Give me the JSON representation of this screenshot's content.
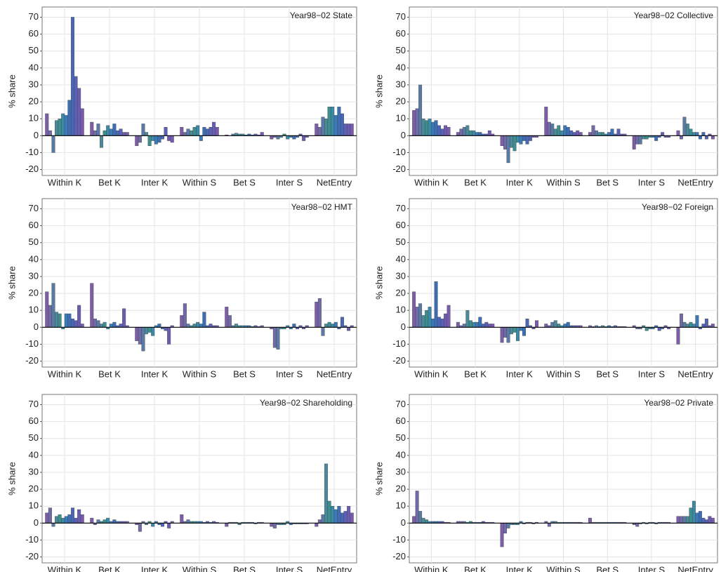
{
  "colors": [
    "#7b5ea7",
    "#6f6aa8",
    "#5a7aa6",
    "#4a8a9a",
    "#3a8f8f",
    "#3a8aa8",
    "#3a7ab8",
    "#3a6fb8",
    "#4a66b8",
    "#5a60b4",
    "#6a5cb2",
    "#7a5ab0"
  ],
  "chart_data": [
    {
      "type": "bar",
      "annotation": "Year98−02 State",
      "ylabel": "% share",
      "categories": [
        "Within K",
        "Bet K",
        "Inter K",
        "Within S",
        "Bet S",
        "Inter S",
        "NetEntry"
      ],
      "values": [
        [
          13,
          3,
          -10,
          9,
          10,
          13,
          12,
          21,
          70,
          35,
          28,
          16
        ],
        [
          8,
          3,
          7,
          -7,
          3,
          6,
          4,
          7,
          3,
          4,
          2,
          2
        ],
        [
          -6,
          -4,
          7,
          2,
          -6,
          -3,
          -5,
          -4,
          -2,
          5,
          -3,
          -4
        ],
        [
          5,
          2,
          4,
          3,
          5,
          6,
          -3,
          5,
          4,
          5,
          8,
          5
        ],
        [
          0.5,
          0,
          1,
          1.5,
          1,
          1,
          0.5,
          1,
          0.5,
          1,
          0.5,
          2
        ],
        [
          -2,
          -1,
          -2,
          -1,
          1,
          -2,
          -1,
          -2,
          -1,
          1,
          -3,
          -1
        ],
        [
          7,
          5,
          11,
          10,
          17,
          17,
          12,
          17,
          13,
          7,
          7,
          7
        ]
      ],
      "ylim": [
        -23.5,
        76
      ],
      "yticks": [
        -20,
        -10,
        0,
        10,
        20,
        30,
        40,
        50,
        60,
        70
      ],
      "grid": true
    },
    {
      "type": "bar",
      "annotation": "Year98−02 Collective",
      "ylabel": "% share",
      "categories": [
        "Within K",
        "Bet K",
        "Inter K",
        "Within S",
        "Bet S",
        "Inter S",
        "NetEntry"
      ],
      "values": [
        [
          15,
          16,
          30,
          10,
          9,
          10,
          8,
          9,
          6,
          4,
          6,
          5
        ],
        [
          2,
          4,
          5,
          6,
          3,
          3,
          2,
          2,
          1,
          1,
          3,
          1
        ],
        [
          -6,
          -8,
          -16,
          -7,
          -9,
          -4,
          -5,
          -3,
          -5,
          -3,
          -1,
          -1
        ],
        [
          17,
          8,
          7,
          4,
          6,
          3,
          6,
          5,
          3,
          2,
          3,
          2
        ],
        [
          2,
          6,
          3,
          2,
          2,
          1,
          2,
          4,
          1,
          4,
          1,
          1
        ],
        [
          -8,
          -5,
          -5,
          -2,
          -2,
          -1,
          -1,
          -3,
          -1,
          2,
          -1,
          -1
        ],
        [
          3,
          -2,
          11,
          7,
          4,
          2,
          2,
          -2,
          2,
          -2,
          1,
          -2
        ]
      ],
      "ylim": [
        -23.5,
        76
      ],
      "yticks": [
        -20,
        -10,
        0,
        10,
        20,
        30,
        40,
        50,
        60,
        70
      ],
      "grid": true
    },
    {
      "type": "bar",
      "annotation": "Year98−02 HMT",
      "ylabel": "% share",
      "categories": [
        "Within K",
        "Bet K",
        "Inter K",
        "Within S",
        "Bet S",
        "Inter S",
        "NetEntry"
      ],
      "values": [
        [
          21,
          13,
          26,
          9,
          8,
          -1,
          8,
          8,
          5,
          4,
          13,
          2
        ],
        [
          26,
          5,
          4,
          2,
          3,
          -1,
          2,
          3,
          1,
          2,
          11,
          1
        ],
        [
          -8,
          -10,
          -14,
          -4,
          -3,
          -5,
          1,
          2,
          -1,
          -2,
          -10,
          1
        ],
        [
          7,
          14,
          2,
          1,
          2,
          3,
          2,
          9,
          1,
          2,
          1,
          1
        ],
        [
          12,
          7,
          1,
          2,
          1,
          1,
          1,
          1,
          0.5,
          1,
          0.5,
          1
        ],
        [
          -1,
          -12,
          -13,
          -1,
          -1,
          1,
          -1,
          2,
          -1,
          1,
          -1,
          1
        ],
        [
          15,
          17,
          -5,
          2,
          3,
          2,
          3,
          -1,
          6,
          1,
          -2,
          1
        ]
      ],
      "ylim": [
        -23.5,
        76
      ],
      "yticks": [
        -20,
        -10,
        0,
        10,
        20,
        30,
        40,
        50,
        60,
        70
      ],
      "grid": true
    },
    {
      "type": "bar",
      "annotation": "Year98−02 Foreign",
      "ylabel": "% share",
      "categories": [
        "Within K",
        "Bet K",
        "Inter K",
        "Within S",
        "Bet S",
        "Inter S",
        "NetEntry"
      ],
      "values": [
        [
          21,
          12,
          14,
          7,
          10,
          12,
          5,
          27,
          6,
          5,
          8,
          13
        ],
        [
          3,
          1,
          2,
          10,
          4,
          3,
          3,
          6,
          2,
          3,
          2,
          2
        ],
        [
          -9,
          -6,
          -9,
          -4,
          -3,
          -8,
          -2,
          -5,
          5,
          1,
          -1,
          4
        ],
        [
          2,
          1,
          3,
          4,
          2,
          1,
          2,
          3,
          1,
          1,
          1,
          1
        ],
        [
          1,
          0.5,
          1,
          0.5,
          1,
          0.5,
          1,
          0.5,
          1,
          0.5,
          0.5,
          0.5
        ],
        [
          1,
          -1,
          -1,
          1,
          -2,
          -1,
          -1,
          1,
          -2,
          -1,
          1,
          -1
        ],
        [
          -10,
          8,
          3,
          2,
          3,
          2,
          7,
          -1,
          2,
          5,
          1,
          2
        ]
      ],
      "ylim": [
        -23.5,
        76
      ],
      "yticks": [
        -20,
        -10,
        0,
        10,
        20,
        30,
        40,
        50,
        60,
        70
      ],
      "grid": true
    },
    {
      "type": "bar",
      "annotation": "Year98−02 Shareholding",
      "ylabel": "% share",
      "categories": [
        "Within K",
        "Bet K",
        "Inter K",
        "Within S",
        "Bet S",
        "Inter S",
        "NetEntry"
      ],
      "values": [
        [
          6,
          9,
          -2,
          4,
          5,
          3,
          4,
          5,
          9,
          3,
          8,
          5
        ],
        [
          3,
          -1,
          2,
          1,
          2,
          3,
          1,
          2,
          1,
          1,
          1,
          1
        ],
        [
          -1,
          -5,
          1,
          -1,
          1,
          -2,
          1,
          -1,
          -2,
          1,
          -3,
          1
        ],
        [
          5,
          1,
          2,
          1,
          1,
          1,
          1,
          0.5,
          1,
          0.5,
          1,
          0.5
        ],
        [
          -2,
          0.5,
          0.5,
          0.5,
          -1,
          0.5,
          0.5,
          0.5,
          0.5,
          -0.5,
          0.5,
          0.5
        ],
        [
          -2,
          -3,
          -1,
          -1,
          -1,
          1,
          -1,
          -0.5,
          -0.5,
          -0.5,
          -0.5,
          -0.5
        ],
        [
          -2,
          2,
          5,
          35,
          13,
          10,
          8,
          10,
          6,
          7,
          10,
          6
        ]
      ],
      "ylim": [
        -23.5,
        76
      ],
      "yticks": [
        -20,
        -10,
        0,
        10,
        20,
        30,
        40,
        50,
        60,
        70
      ],
      "grid": true
    },
    {
      "type": "bar",
      "annotation": "Year98−02 Private",
      "ylabel": "% share",
      "categories": [
        "Within K",
        "Bet K",
        "Inter K",
        "Within S",
        "Bet S",
        "Inter S",
        "NetEntry"
      ],
      "values": [
        [
          4,
          19,
          7,
          3,
          2,
          1,
          1,
          1,
          1,
          1,
          0.5,
          0.5
        ],
        [
          1,
          1,
          1,
          0.5,
          1,
          0.5,
          0.5,
          0.5,
          1,
          0.5,
          0.5,
          0.5
        ],
        [
          -14,
          -6,
          -3,
          -1,
          -1,
          -1,
          1,
          -0.5,
          0.5,
          0.5,
          -0.5,
          0.5
        ],
        [
          1,
          -2,
          1,
          1,
          0.5,
          0.5,
          0.5,
          0.5,
          0.5,
          0.5,
          0.5,
          0.5
        ],
        [
          3,
          0.5,
          0.5,
          0.5,
          0.5,
          0.5,
          0.5,
          0.5,
          0.5,
          0.5,
          0.5,
          0.5
        ],
        [
          -1,
          -2,
          -0.5,
          0.5,
          -0.5,
          0.5,
          0.5,
          -0.5,
          0.5,
          0.5,
          0.5,
          0.5
        ],
        [
          4,
          4,
          4,
          4,
          9,
          13,
          6,
          7,
          3,
          2,
          4,
          3
        ]
      ],
      "ylim": [
        -23.5,
        76
      ],
      "yticks": [
        -20,
        -10,
        0,
        10,
        20,
        30,
        40,
        50,
        60,
        70
      ],
      "grid": true
    }
  ]
}
